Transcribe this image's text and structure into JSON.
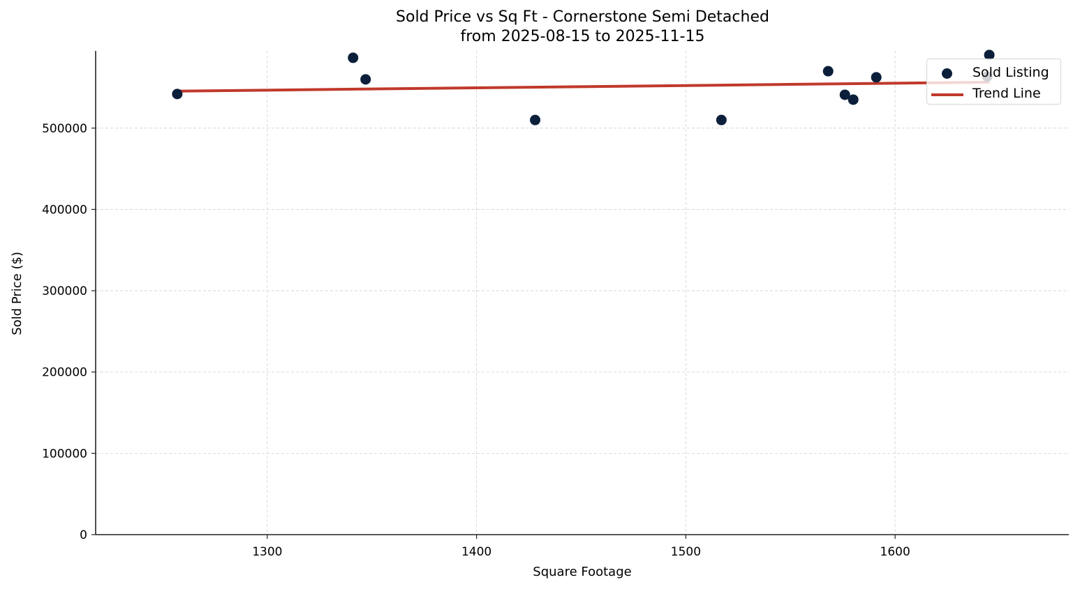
{
  "title": {
    "line1": "Sold Price vs Sq Ft - Cornerstone Semi Detached",
    "line2": "from 2025-08-15 to 2025-11-15"
  },
  "colors": {
    "points": "#0b1f3a",
    "trend": "#c0392b",
    "grid": "#d0d0d0",
    "axis": "#222222"
  },
  "legend": {
    "items": [
      {
        "label": "Sold Listing",
        "kind": "marker"
      },
      {
        "label": "Trend Line",
        "kind": "line"
      }
    ]
  },
  "chart_data": {
    "type": "scatter",
    "title": "Sold Price vs Sq Ft - Cornerstone Semi Detached\nfrom 2025-08-15 to 2025-11-15",
    "xlabel": "Square Footage",
    "ylabel": "Sold Price ($)",
    "xlim": [
      1218,
      1683
    ],
    "ylim": [
      0,
      595000
    ],
    "xticks": [
      1300,
      1400,
      1500,
      1600
    ],
    "yticks": [
      0,
      100000,
      200000,
      300000,
      400000,
      500000
    ],
    "xtick_labels": [
      "1300",
      "1400",
      "1500",
      "1600"
    ],
    "ytick_labels": [
      "0",
      "100000",
      "200000",
      "300000",
      "400000",
      "500000"
    ],
    "grid": true,
    "legend_position": "upper right",
    "series": [
      {
        "name": "Sold Listing",
        "type": "scatter",
        "points": [
          {
            "x": 1257,
            "y": 542000
          },
          {
            "x": 1341,
            "y": 586500
          },
          {
            "x": 1347,
            "y": 560000
          },
          {
            "x": 1428,
            "y": 510000
          },
          {
            "x": 1517,
            "y": 510000
          },
          {
            "x": 1568,
            "y": 570000
          },
          {
            "x": 1576,
            "y": 541000
          },
          {
            "x": 1580,
            "y": 535000
          },
          {
            "x": 1591,
            "y": 562500
          },
          {
            "x": 1644,
            "y": 563500
          },
          {
            "x": 1645,
            "y": 590000
          }
        ]
      },
      {
        "name": "Trend Line",
        "type": "line",
        "points": [
          {
            "x": 1257,
            "y": 545500
          },
          {
            "x": 1645,
            "y": 556500
          }
        ]
      }
    ]
  }
}
